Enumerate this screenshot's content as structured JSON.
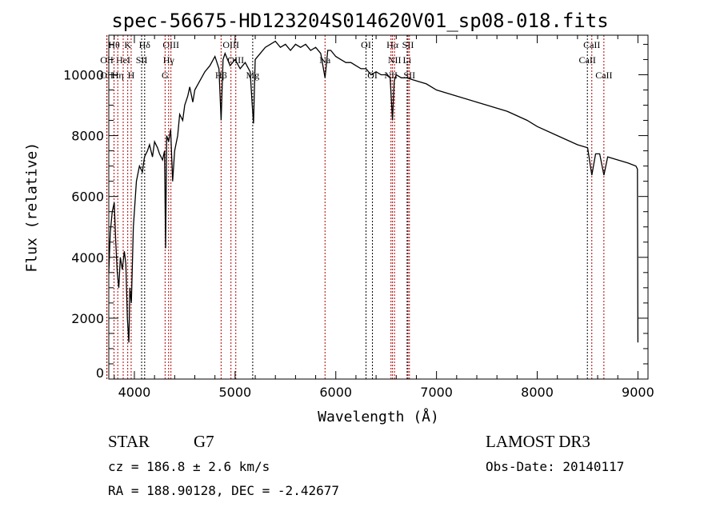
{
  "chart_data": {
    "type": "line",
    "title": "spec-56675-HD123204S014620V01_sp08-018.fits",
    "xlabel": "Wavelength (Å)",
    "ylabel": "Flux (relative)",
    "xlim": [
      3746,
      9100
    ],
    "ylim": [
      0,
      11300
    ],
    "xticks": [
      4000,
      5000,
      6000,
      7000,
      8000,
      9000
    ],
    "yticks": [
      0,
      2000,
      4000,
      6000,
      8000,
      10000
    ],
    "grid": false,
    "series": [
      {
        "name": "spectrum",
        "x": [
          3746,
          3760,
          3780,
          3800,
          3815,
          3830,
          3845,
          3860,
          3880,
          3900,
          3915,
          3930,
          3945,
          3955,
          3970,
          3990,
          4020,
          4050,
          4080,
          4100,
          4130,
          4150,
          4180,
          4200,
          4230,
          4250,
          4280,
          4300,
          4310,
          4320,
          4340,
          4360,
          4380,
          4400,
          4430,
          4450,
          4480,
          4500,
          4530,
          4550,
          4580,
          4600,
          4650,
          4700,
          4750,
          4800,
          4840,
          4861,
          4880,
          4900,
          4950,
          5000,
          5050,
          5100,
          5150,
          5170,
          5183,
          5200,
          5250,
          5300,
          5350,
          5400,
          5450,
          5500,
          5550,
          5600,
          5650,
          5700,
          5750,
          5800,
          5850,
          5893,
          5920,
          5950,
          6000,
          6050,
          6100,
          6150,
          6200,
          6250,
          6300,
          6350,
          6400,
          6450,
          6500,
          6540,
          6563,
          6580,
          6600,
          6650,
          6700,
          6800,
          6900,
          7000,
          7200,
          7400,
          7500,
          7700,
          7900,
          8000,
          8200,
          8400,
          8500,
          8542,
          8580,
          8620,
          8662,
          8700,
          8800,
          8900,
          8980,
          8995,
          9000
        ],
        "y": [
          3500,
          4800,
          5500,
          5800,
          4500,
          3500,
          3000,
          4000,
          3600,
          4200,
          3800,
          2000,
          1200,
          3000,
          2500,
          5000,
          6500,
          7000,
          6800,
          7300,
          7500,
          7700,
          7300,
          7800,
          7600,
          7400,
          7200,
          7500,
          4300,
          8000,
          7800,
          8200,
          6500,
          7500,
          8000,
          8700,
          8500,
          9000,
          9300,
          9600,
          9100,
          9500,
          9800,
          10100,
          10300,
          10600,
          10200,
          8500,
          10500,
          10700,
          10300,
          10500,
          10200,
          10400,
          10100,
          9000,
          8400,
          10500,
          10700,
          10900,
          11000,
          11100,
          10900,
          11000,
          10800,
          11000,
          10900,
          11000,
          10800,
          10900,
          10700,
          9900,
          10800,
          10800,
          10600,
          10500,
          10400,
          10400,
          10300,
          10200,
          10200,
          10000,
          10100,
          10000,
          10000,
          9900,
          8500,
          9800,
          10000,
          9900,
          9900,
          9800,
          9700,
          9500,
          9300,
          9100,
          9000,
          8800,
          8500,
          8300,
          8000,
          7700,
          7600,
          6700,
          7400,
          7400,
          6700,
          7300,
          7200,
          7100,
          7000,
          6900,
          1200
        ]
      }
    ],
    "lines": [
      {
        "label": "Hθ",
        "wl": 3798,
        "row": 0,
        "color": "#b00000"
      },
      {
        "label": "K",
        "wl": 3934,
        "row": 0,
        "color": "#b00000"
      },
      {
        "label": "Hδ",
        "wl": 4102,
        "row": 0,
        "color": "#000000"
      },
      {
        "label": "OIII",
        "wl": 4363,
        "row": 0,
        "color": "#b00000"
      },
      {
        "label": "OIII",
        "wl": 4959,
        "row": 0,
        "color": "#b00000"
      },
      {
        "label": "OI",
        "wl": 6300,
        "row": 0,
        "color": "#000000"
      },
      {
        "label": "Hα",
        "wl": 6563,
        "row": 0,
        "color": "#b00000"
      },
      {
        "label": "SII",
        "wl": 6717,
        "row": 0,
        "color": "#b00000"
      },
      {
        "label": "CaII",
        "wl": 8542,
        "row": 0,
        "color": "#b00000"
      },
      {
        "label": "OII",
        "wl": 3727,
        "row": 1,
        "color": "#b00000"
      },
      {
        "label": "HeI",
        "wl": 3889,
        "row": 1,
        "color": "#b00000"
      },
      {
        "label": "SII",
        "wl": 4072,
        "row": 1,
        "color": "#000000"
      },
      {
        "label": "Hγ",
        "wl": 4340,
        "row": 1,
        "color": "#b00000"
      },
      {
        "label": "OIII",
        "wl": 5007,
        "row": 1,
        "color": "#b00000"
      },
      {
        "label": "Na",
        "wl": 5893,
        "row": 1,
        "color": "#b00000"
      },
      {
        "label": "NII",
        "wl": 6583,
        "row": 1,
        "color": "#b00000"
      },
      {
        "label": "Li",
        "wl": 6708,
        "row": 1,
        "color": "#000000"
      },
      {
        "label": "CaII",
        "wl": 8498,
        "row": 1,
        "color": "#000000"
      },
      {
        "label": "OII",
        "wl": 3727,
        "row": 2,
        "color": "#b00000"
      },
      {
        "label": "Hη",
        "wl": 3835,
        "row": 2,
        "color": "#b00000"
      },
      {
        "label": "H",
        "wl": 3968,
        "row": 2,
        "color": "#b00000"
      },
      {
        "label": "G",
        "wl": 4305,
        "row": 2,
        "color": "#b00000"
      },
      {
        "label": "Hβ",
        "wl": 4861,
        "row": 2,
        "color": "#b00000"
      },
      {
        "label": "Mg",
        "wl": 5175,
        "row": 2,
        "color": "#000000"
      },
      {
        "label": "OI",
        "wl": 6364,
        "row": 2,
        "color": "#000000"
      },
      {
        "label": "NII",
        "wl": 6548,
        "row": 2,
        "color": "#b00000"
      },
      {
        "label": "SII",
        "wl": 6731,
        "row": 2,
        "color": "#b00000"
      },
      {
        "label": "CaII",
        "wl": 8662,
        "row": 2,
        "color": "#b00000"
      }
    ]
  },
  "info": {
    "object_class": "STAR",
    "subclass": "G7",
    "survey": "LAMOST DR3",
    "cz": "cz = 186.8 ± 2.6 km/s",
    "obs_date": "Obs-Date: 20140117",
    "coords": "RA = 188.90128, DEC =  -2.42677"
  }
}
